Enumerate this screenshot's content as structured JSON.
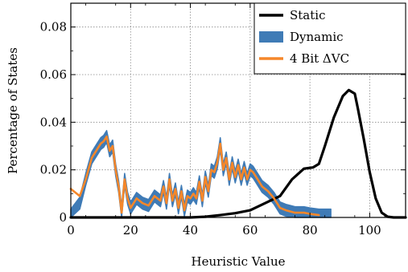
{
  "chart_data": {
    "type": "line",
    "title": "",
    "xlabel": "Heuristic Value",
    "ylabel": "Percentage of States",
    "xlim": [
      0,
      112
    ],
    "ylim": [
      0,
      0.09
    ],
    "xticks": [
      0,
      20,
      40,
      60,
      80,
      100
    ],
    "yticks": [
      0,
      0.02,
      0.04,
      0.06,
      0.08
    ],
    "xtick_labels": [
      "0",
      "20",
      "40",
      "60",
      "80",
      "100"
    ],
    "ytick_labels": [
      "0",
      "0.02",
      "0.04",
      "0.06",
      "0.08"
    ],
    "grid": true,
    "legend_position": "top-right",
    "series": [
      {
        "name": "Static",
        "style": "line",
        "color": "#000000",
        "x": [
          0,
          10,
          20,
          30,
          40,
          45,
          50,
          55,
          60,
          65,
          70,
          74,
          78,
          81,
          83,
          85,
          88,
          91,
          93,
          95,
          96,
          98,
          100,
          102,
          104,
          106,
          108,
          110,
          112
        ],
        "y": [
          0,
          0,
          0,
          0,
          0,
          0.0003,
          0.001,
          0.0018,
          0.003,
          0.006,
          0.009,
          0.016,
          0.0205,
          0.021,
          0.0225,
          0.03,
          0.042,
          0.051,
          0.0535,
          0.052,
          0.046,
          0.033,
          0.019,
          0.008,
          0.002,
          0.0003,
          0,
          0,
          0
        ]
      },
      {
        "name": "Dynamic",
        "style": "band",
        "color": "#3f7bb6",
        "x": [
          0,
          3,
          5,
          7,
          9,
          10,
          11,
          12,
          13,
          14,
          15,
          16,
          17,
          18,
          19,
          20,
          22,
          24,
          26,
          28,
          30,
          31,
          32,
          33,
          34,
          35,
          36,
          37,
          38,
          39,
          40,
          41,
          42,
          43,
          44,
          45,
          46,
          47,
          48,
          49,
          50,
          51,
          52,
          53,
          54,
          55,
          56,
          57,
          58,
          59,
          60,
          61,
          62,
          64,
          66,
          68,
          70,
          72,
          75,
          78,
          80,
          83,
          87
        ],
        "y": [
          0.001,
          0.006,
          0.016,
          0.025,
          0.029,
          0.031,
          0.032,
          0.034,
          0.028,
          0.03,
          0.02,
          0.013,
          0.002,
          0.016,
          0.008,
          0.004,
          0.008,
          0.006,
          0.005,
          0.009,
          0.007,
          0.013,
          0.006,
          0.016,
          0.007,
          0.012,
          0.004,
          0.011,
          0.003,
          0.009,
          0.008,
          0.01,
          0.008,
          0.015,
          0.007,
          0.017,
          0.011,
          0.02,
          0.019,
          0.023,
          0.031,
          0.02,
          0.025,
          0.016,
          0.023,
          0.017,
          0.022,
          0.016,
          0.021,
          0.016,
          0.02,
          0.019,
          0.017,
          0.013,
          0.011,
          0.008,
          0.004,
          0.003,
          0.002,
          0.002,
          0.0015,
          0.001,
          0.001
        ],
        "band_width": 0.0025
      },
      {
        "name": "4 Bit ΔVC",
        "style": "line",
        "color": "#f5872a",
        "x": [
          0,
          1,
          2,
          3,
          5,
          7,
          9,
          10,
          11,
          12,
          13,
          14,
          15,
          16,
          17,
          18,
          19,
          20,
          22,
          24,
          26,
          28,
          30,
          31,
          32,
          33,
          34,
          35,
          36,
          37,
          38,
          39,
          40,
          41,
          42,
          43,
          44,
          45,
          46,
          47,
          48,
          49,
          50,
          51,
          52,
          53,
          54,
          55,
          56,
          57,
          58,
          59,
          60,
          61,
          62,
          64,
          66,
          68,
          70,
          72,
          75,
          78,
          80,
          83
        ],
        "y": [
          0.012,
          0.011,
          0.01,
          0.009,
          0.016,
          0.025,
          0.029,
          0.031,
          0.032,
          0.034,
          0.028,
          0.03,
          0.02,
          0.013,
          0.002,
          0.016,
          0.008,
          0.004,
          0.008,
          0.006,
          0.005,
          0.009,
          0.007,
          0.013,
          0.006,
          0.016,
          0.007,
          0.012,
          0.004,
          0.011,
          0.003,
          0.009,
          0.008,
          0.01,
          0.008,
          0.015,
          0.007,
          0.017,
          0.011,
          0.02,
          0.019,
          0.023,
          0.031,
          0.02,
          0.025,
          0.016,
          0.023,
          0.017,
          0.022,
          0.016,
          0.021,
          0.016,
          0.02,
          0.019,
          0.017,
          0.013,
          0.011,
          0.008,
          0.004,
          0.003,
          0.002,
          0.002,
          0.0015,
          0.001
        ]
      }
    ]
  }
}
